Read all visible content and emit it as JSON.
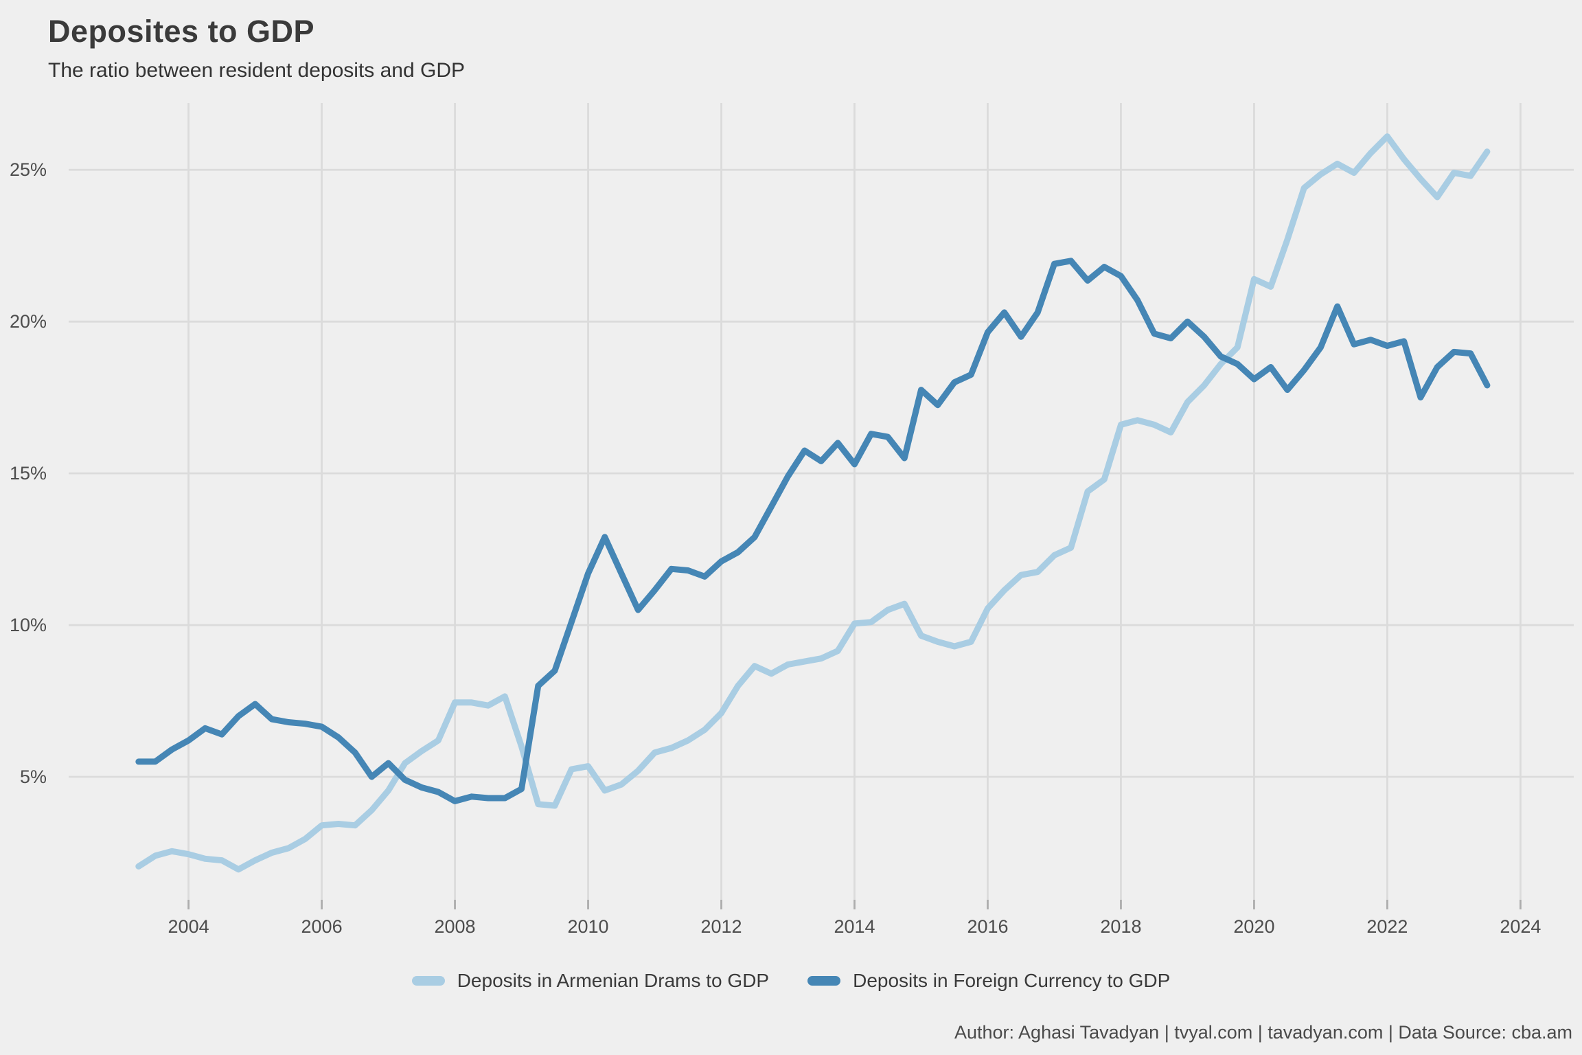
{
  "title": "Deposites to GDP",
  "subtitle": "The ratio between resident deposits and GDP",
  "caption": "Author: Aghasi Tavadyan   |   tvyal.com   |   tavadyan.com   |   Data Source: cba.am",
  "colors": {
    "background": "#EFEFEF",
    "gridline": "#DBDBDB",
    "tick_stub": "#ADADAD",
    "drams_line": "#A9CDE3",
    "foreign_line": "#4586B5"
  },
  "chart_data": {
    "type": "line",
    "title": "Deposites to GDP",
    "subtitle": "The ratio between resident deposits and GDP",
    "xlabel": "",
    "ylabel": "",
    "grid": true,
    "legend_position": "bottom",
    "x_ticks": [
      2004,
      2006,
      2008,
      2010,
      2012,
      2014,
      2016,
      2018,
      2020,
      2022,
      2024
    ],
    "y_ticks": [
      5,
      10,
      15,
      20,
      25
    ],
    "y_tick_suffix": "%",
    "xlim": [
      2002.2,
      2024.8
    ],
    "ylim": [
      0.95,
      27.2
    ],
    "x": [
      2003.25,
      2003.5,
      2003.75,
      2004,
      2004.25,
      2004.5,
      2004.75,
      2005,
      2005.25,
      2005.5,
      2005.75,
      2006,
      2006.25,
      2006.5,
      2006.75,
      2007,
      2007.25,
      2007.5,
      2007.75,
      2008,
      2008.25,
      2008.5,
      2008.75,
      2009,
      2009.25,
      2009.5,
      2009.75,
      2010,
      2010.25,
      2010.5,
      2010.75,
      2011,
      2011.25,
      2011.5,
      2011.75,
      2012,
      2012.25,
      2012.5,
      2012.75,
      2013,
      2013.25,
      2013.5,
      2013.75,
      2014,
      2014.25,
      2014.5,
      2014.75,
      2015,
      2015.25,
      2015.5,
      2015.75,
      2016,
      2016.25,
      2016.5,
      2016.75,
      2017,
      2017.25,
      2017.5,
      2017.75,
      2018,
      2018.25,
      2018.5,
      2018.75,
      2019,
      2019.25,
      2019.5,
      2019.75,
      2020,
      2020.25,
      2020.5,
      2020.75,
      2021,
      2021.25,
      2021.5,
      2021.75,
      2022,
      2022.25,
      2022.5,
      2022.75,
      2023,
      2023.25,
      2023.5
    ],
    "series": [
      {
        "name": "Deposits in Armenian Drams to GDP",
        "color": "#A9CDE3",
        "values": [
          2.05,
          2.4,
          2.55,
          2.45,
          2.3,
          2.25,
          1.95,
          2.25,
          2.5,
          2.65,
          2.95,
          3.4,
          3.45,
          3.4,
          3.9,
          4.55,
          5.45,
          5.85,
          6.2,
          7.45,
          7.45,
          7.35,
          7.65,
          6.0,
          4.1,
          4.05,
          5.25,
          5.35,
          4.55,
          4.75,
          5.2,
          5.8,
          5.95,
          6.2,
          6.55,
          7.1,
          8.0,
          8.65,
          8.4,
          8.7,
          8.8,
          8.9,
          9.15,
          10.05,
          10.1,
          10.5,
          10.7,
          9.65,
          9.45,
          9.3,
          9.45,
          10.55,
          11.15,
          11.65,
          11.75,
          12.3,
          12.55,
          14.4,
          14.8,
          16.6,
          16.75,
          16.6,
          16.35,
          17.35,
          17.9,
          18.6,
          19.15,
          21.4,
          21.15,
          22.7,
          24.4,
          24.85,
          25.2,
          24.9,
          25.55,
          26.1,
          25.35,
          24.7,
          24.1,
          24.9,
          24.8,
          25.6
        ]
      },
      {
        "name": "Deposits in Foreign Currency to GDP",
        "color": "#4586B5",
        "values": [
          5.5,
          5.5,
          5.9,
          6.2,
          6.6,
          6.4,
          7.0,
          7.4,
          6.9,
          6.8,
          6.75,
          6.65,
          6.3,
          5.8,
          5.0,
          5.45,
          4.9,
          4.65,
          4.5,
          4.2,
          4.35,
          4.3,
          4.3,
          4.6,
          8.0,
          8.5,
          10.1,
          11.7,
          12.9,
          11.7,
          10.5,
          11.15,
          11.85,
          11.8,
          11.6,
          12.1,
          12.4,
          12.9,
          13.9,
          14.9,
          15.75,
          15.4,
          16.0,
          15.3,
          16.3,
          16.2,
          15.5,
          17.75,
          17.25,
          18.0,
          18.25,
          19.65,
          20.3,
          19.5,
          20.3,
          21.9,
          22.0,
          21.35,
          21.8,
          21.5,
          20.7,
          19.6,
          19.45,
          20.0,
          19.5,
          18.85,
          18.6,
          18.1,
          18.5,
          17.75,
          18.4,
          19.15,
          20.5,
          19.25,
          19.4,
          19.2,
          19.35,
          17.5,
          18.5,
          19.0,
          18.95,
          17.9
        ]
      }
    ]
  }
}
